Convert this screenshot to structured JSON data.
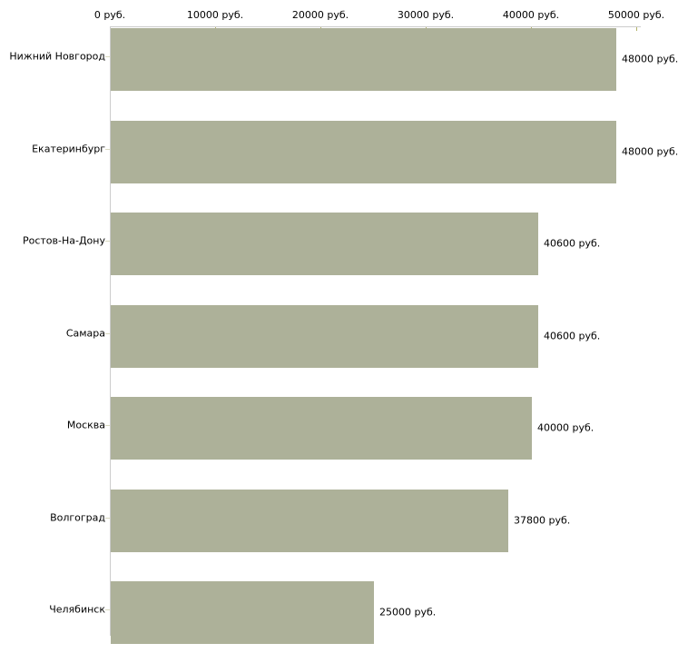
{
  "chart_data": {
    "type": "bar",
    "orientation": "horizontal",
    "title": "",
    "categories": [
      "Нижний Новгород",
      "Екатеринбург",
      "Ростов-На-Дону",
      "Самара",
      "Москва",
      "Волгоград",
      "Челябинск"
    ],
    "values": [
      48000,
      48000,
      40600,
      40600,
      40000,
      37800,
      25000
    ],
    "value_labels": [
      "48000 руб.",
      "48000 руб.",
      "40600 руб.",
      "40600 руб.",
      "40000 руб.",
      "37800 руб.",
      "25000 руб."
    ],
    "unit": "руб.",
    "x_axis": {
      "position": "top",
      "range": [
        0,
        50000
      ],
      "ticks": [
        0,
        10000,
        20000,
        30000,
        40000,
        50000
      ],
      "tick_labels": [
        "0 руб.",
        "10000 руб.",
        "20000 руб.",
        "30000 руб.",
        "40000 руб.",
        "50000 руб."
      ]
    },
    "grid": false,
    "legend": false,
    "colors": {
      "bar": "#adb199",
      "axis_line": "#cccccc",
      "top_tick": "#b2b266",
      "category_tick": "#d9d9c0",
      "text": "#000000",
      "background": "#ffffff"
    }
  }
}
